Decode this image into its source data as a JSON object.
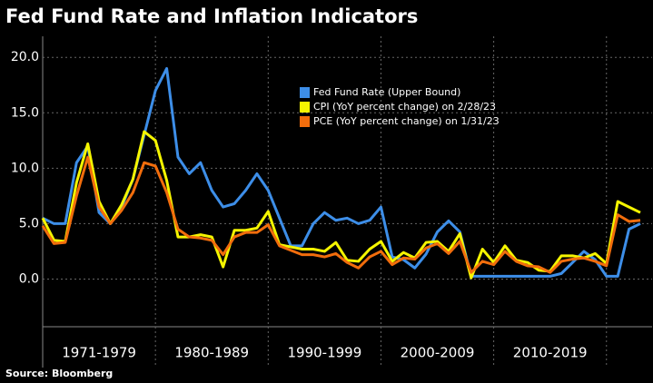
{
  "chart_data": {
    "type": "line",
    "title": "Fed Fund Rate and Inflation Indicators",
    "source": "Source: Bloomberg",
    "x": [
      1970,
      1971,
      1972,
      1973,
      1974,
      1975,
      1976,
      1977,
      1978,
      1979,
      1980,
      1981,
      1982,
      1983,
      1984,
      1985,
      1986,
      1987,
      1988,
      1989,
      1990,
      1991,
      1992,
      1993,
      1994,
      1995,
      1996,
      1997,
      1998,
      1999,
      2000,
      2001,
      2002,
      2003,
      2004,
      2005,
      2006,
      2007,
      2008,
      2009,
      2010,
      2011,
      2012,
      2013,
      2014,
      2015,
      2016,
      2017,
      2018,
      2019,
      2020,
      2021,
      2022,
      2023
    ],
    "xlim": [
      1970,
      2023
    ],
    "x_dividers": [
      1980,
      1990,
      2000,
      2010,
      2020
    ],
    "period_labels": [
      "1971-1979",
      "1980-1989",
      "1990-1999",
      "2000-2009",
      "2010-2019"
    ],
    "ylim": [
      -4.3,
      21.9
    ],
    "yticks": [
      {
        "value": 0,
        "label": "0.0"
      },
      {
        "value": 5,
        "label": "5.0"
      },
      {
        "value": 10,
        "label": "10.0"
      },
      {
        "value": 15,
        "label": "15.0"
      },
      {
        "value": 20,
        "label": "20.0"
      }
    ],
    "grid": true,
    "series": [
      {
        "name": "Fed Fund Rate (Upper Bound)",
        "color": "#3d8ee8",
        "values": [
          5.5,
          5,
          5,
          10.5,
          12,
          6,
          5,
          6.5,
          9,
          13,
          17,
          19,
          11,
          9.5,
          10.5,
          8,
          6.5,
          6.8,
          8,
          9.5,
          8,
          5.5,
          3,
          3,
          5,
          6,
          5.3,
          5.5,
          5,
          5.3,
          6.5,
          2,
          1.75,
          1,
          2.25,
          4.25,
          5.25,
          4.25,
          0.25,
          0.25,
          0.25,
          0.25,
          0.25,
          0.25,
          0.25,
          0.25,
          0.5,
          1.5,
          2.5,
          1.75,
          0.25,
          0.25,
          4.5,
          5
        ]
      },
      {
        "name": "CPI (YoY percent change) on 2/28/23",
        "color": "#f5f500",
        "values": [
          5.5,
          3.5,
          3.4,
          8.7,
          12.2,
          7,
          5,
          6.7,
          9,
          13.3,
          12.5,
          8.9,
          3.8,
          3.8,
          4,
          3.8,
          1.1,
          4.4,
          4.4,
          4.6,
          6.1,
          3.1,
          2.9,
          2.7,
          2.7,
          2.5,
          3.3,
          1.7,
          1.6,
          2.7,
          3.4,
          1.6,
          2.4,
          1.9,
          3.3,
          3.4,
          2.5,
          4.1,
          0.1,
          2.7,
          1.5,
          3,
          1.7,
          1.5,
          0.8,
          0.7,
          2.1,
          2.1,
          1.9,
          2.3,
          1.4,
          7,
          6.5,
          6
        ]
      },
      {
        "name": "PCE (YoY percent change) on 1/31/23",
        "color": "#f26d0c",
        "values": [
          4.8,
          3.2,
          3.3,
          7.5,
          11,
          6.5,
          5,
          6.2,
          7.8,
          10.5,
          10.2,
          7.8,
          4.5,
          3.8,
          3.7,
          3.5,
          2.2,
          3.8,
          4.2,
          4.2,
          4.9,
          3,
          2.6,
          2.2,
          2.2,
          2,
          2.3,
          1.5,
          1,
          2,
          2.5,
          1.3,
          1.9,
          1.8,
          2.8,
          3.2,
          2.3,
          3.4,
          0.6,
          1.6,
          1.3,
          2.5,
          1.6,
          1.2,
          1.1,
          0.6,
          1.6,
          1.8,
          1.9,
          1.6,
          1.2,
          5.8,
          5.2,
          5.3
        ]
      }
    ]
  }
}
